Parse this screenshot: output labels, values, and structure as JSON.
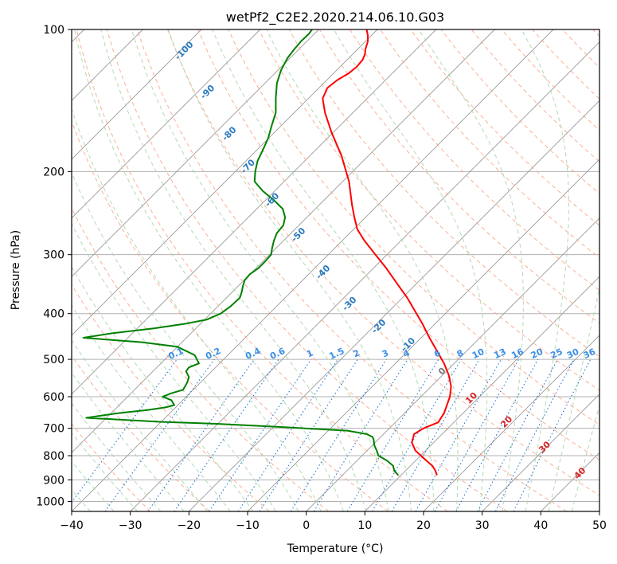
{
  "chart_data": {
    "type": "line",
    "title": "wetPf2_C2E2.2020.214.06.10.G03",
    "xlabel": "Temperature (°C)",
    "ylabel": "Pressure (hPa)",
    "xlim": [
      -40,
      50
    ],
    "ylim": [
      1050,
      100
    ],
    "y_scale": "log",
    "grid": true,
    "x_ticks": [
      -40,
      -30,
      -20,
      -10,
      0,
      10,
      20,
      30,
      40,
      50
    ],
    "y_ticks": [
      100,
      200,
      300,
      400,
      500,
      600,
      700,
      800,
      900,
      1000
    ],
    "x_tick_labels": [
      "−40",
      "−30",
      "−20",
      "−10",
      "0",
      "10",
      "20",
      "30",
      "40",
      "50"
    ],
    "y_tick_labels": [
      "100",
      "200",
      "300",
      "400",
      "500",
      "600",
      "700",
      "800",
      "900",
      "1000"
    ],
    "series": [
      {
        "color": "#ff0000",
        "points": [
          [
            22.3,
            880
          ],
          [
            22.0,
            860
          ],
          [
            21.5,
            840
          ],
          [
            20.5,
            820
          ],
          [
            18.6,
            780
          ],
          [
            18.0,
            750
          ],
          [
            18.4,
            720
          ],
          [
            20.0,
            700
          ],
          [
            22.5,
            680
          ],
          [
            23.5,
            650
          ],
          [
            24.5,
            600
          ],
          [
            24.7,
            570
          ],
          [
            24.3,
            540
          ],
          [
            23.5,
            510
          ],
          [
            22.3,
            480
          ],
          [
            21.0,
            450
          ],
          [
            19.8,
            420
          ],
          [
            18.8,
            400
          ],
          [
            17.2,
            370
          ],
          [
            15.8,
            350
          ],
          [
            13.6,
            320
          ],
          [
            11.8,
            300
          ],
          [
            9.9,
            280
          ],
          [
            8.7,
            265
          ],
          [
            8.2,
            250
          ],
          [
            7.8,
            235
          ],
          [
            7.3,
            210
          ],
          [
            6.0,
            185
          ],
          [
            4.3,
            165
          ],
          [
            3.2,
            150
          ],
          [
            2.8,
            140
          ],
          [
            3.6,
            133
          ],
          [
            5.3,
            128
          ],
          [
            7.2,
            124
          ],
          [
            8.6,
            120
          ],
          [
            9.6,
            116
          ],
          [
            10.0,
            113
          ],
          [
            10.1,
            110
          ],
          [
            10.5,
            106
          ],
          [
            10.5,
            103
          ],
          [
            10.3,
            100
          ]
        ]
      },
      {
        "color": "#008000",
        "points": [
          [
            15.7,
            880
          ],
          [
            15.0,
            860
          ],
          [
            14.8,
            840
          ],
          [
            13.8,
            820
          ],
          [
            12.3,
            800
          ],
          [
            12.0,
            780
          ],
          [
            11.6,
            760
          ],
          [
            11.5,
            740
          ],
          [
            11.3,
            730
          ],
          [
            10.3,
            720
          ],
          [
            7.0,
            708
          ],
          [
            -5.0,
            695
          ],
          [
            -15.0,
            685
          ],
          [
            -25.0,
            678
          ],
          [
            -37.5,
            665
          ],
          [
            -32.0,
            650
          ],
          [
            -27.0,
            640
          ],
          [
            -24.0,
            632
          ],
          [
            -22.5,
            625
          ],
          [
            -23.0,
            610
          ],
          [
            -24.5,
            600
          ],
          [
            -23.0,
            590
          ],
          [
            -21.0,
            580
          ],
          [
            -20.3,
            560
          ],
          [
            -20.0,
            545
          ],
          [
            -20.5,
            530
          ],
          [
            -20.0,
            520
          ],
          [
            -18.3,
            510
          ],
          [
            -19.0,
            490
          ],
          [
            -22.0,
            470
          ],
          [
            -28.0,
            460
          ],
          [
            -38.0,
            450
          ],
          [
            -33.0,
            440
          ],
          [
            -26.0,
            430
          ],
          [
            -20.5,
            420
          ],
          [
            -17.0,
            412
          ],
          [
            -14.6,
            400
          ],
          [
            -12.8,
            385
          ],
          [
            -11.3,
            370
          ],
          [
            -11.0,
            360
          ],
          [
            -10.8,
            350
          ],
          [
            -10.5,
            340
          ],
          [
            -9.6,
            330
          ],
          [
            -8.1,
            320
          ],
          [
            -7.0,
            310
          ],
          [
            -6.0,
            300
          ],
          [
            -5.8,
            290
          ],
          [
            -5.5,
            280
          ],
          [
            -5.0,
            270
          ],
          [
            -3.9,
            260
          ],
          [
            -3.6,
            250
          ],
          [
            -4.0,
            240
          ],
          [
            -5.5,
            230
          ],
          [
            -7.4,
            220
          ],
          [
            -8.8,
            210
          ],
          [
            -8.7,
            200
          ],
          [
            -8.3,
            190
          ],
          [
            -7.4,
            180
          ],
          [
            -6.5,
            170
          ],
          [
            -5.9,
            160
          ],
          [
            -5.2,
            150
          ],
          [
            -5.2,
            140
          ],
          [
            -5.0,
            130
          ],
          [
            -4.3,
            122
          ],
          [
            -3.2,
            115
          ],
          [
            -2.0,
            110
          ],
          [
            -0.9,
            106
          ],
          [
            0.5,
            102
          ],
          [
            1.0,
            100
          ]
        ]
      }
    ],
    "dry_adiabat_labels": [
      "-100",
      "-90",
      "-80",
      "-70",
      "-60",
      "-50",
      "-40",
      "-30",
      "-20",
      "-10",
      "0",
      "10",
      "20",
      "30",
      "40"
    ],
    "mixing_ratio_labels": [
      "0.1",
      "0.2",
      "0.4",
      "0.6",
      "1",
      "1.5",
      "2",
      "3",
      "4",
      "6",
      "8",
      "10",
      "13",
      "16",
      "20",
      "25",
      "30",
      "36"
    ],
    "mixing_ratio_values": [
      0.1,
      0.2,
      0.4,
      0.6,
      1,
      1.5,
      2,
      3,
      4,
      6,
      8,
      10,
      13,
      16,
      20,
      25,
      30,
      36
    ],
    "colors": {
      "isotherm": "#9a9a9a",
      "grid": "#b0b0b0",
      "dry_adiabat": "#fba68a",
      "moist_adiabat": "#a9d6a9",
      "mixing_ratio": "#1f77d4",
      "label_blue": "#2a7ac0",
      "label_red": "#d62728",
      "mixing_label": "#3a8fe8"
    }
  }
}
